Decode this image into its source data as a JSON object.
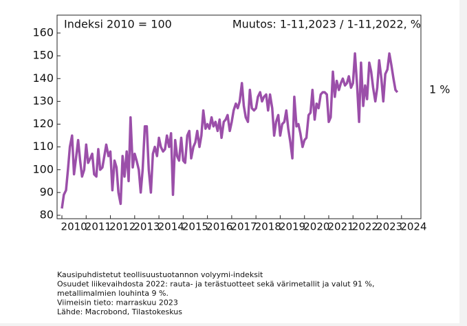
{
  "chart_data": {
    "type": "line",
    "header_left": "Indeksi 2010 = 100",
    "header_right": "Muutos: 1-11,2023 / 1-11,2022, %",
    "annotation": "1 %",
    "notes": [
      "Kausipuhdistetut teollisuustuotannon volyymi-indeksit",
      "Osuudet liikevaihdosta 2022: rauta- ja terästuotteet sekä värimetallit ja valut 91 %,",
      "metallimalmien louhinta 9 %.",
      "Viimeisin tieto: marraskuu 2023",
      "Lähde: Macrobond, Tilastokeskus"
    ],
    "xlim": [
      2010,
      2024.8
    ],
    "xticks": [
      2010,
      2011,
      2012,
      2013,
      2014,
      2015,
      2016,
      2017,
      2018,
      2019,
      2020,
      2021,
      2022,
      2023,
      2024
    ],
    "ylim": [
      80,
      160
    ],
    "yticks": [
      80,
      90,
      100,
      110,
      120,
      130,
      140,
      150,
      160
    ],
    "x": [
      2010.0,
      2010.08,
      2010.17,
      2010.25,
      2010.33,
      2010.42,
      2010.5,
      2010.58,
      2010.67,
      2010.75,
      2010.83,
      2010.92,
      2011.0,
      2011.08,
      2011.17,
      2011.25,
      2011.33,
      2011.42,
      2011.5,
      2011.58,
      2011.67,
      2011.75,
      2011.83,
      2011.92,
      2012.0,
      2012.08,
      2012.17,
      2012.25,
      2012.33,
      2012.42,
      2012.5,
      2012.58,
      2012.67,
      2012.75,
      2012.83,
      2012.92,
      2013.0,
      2013.08,
      2013.17,
      2013.25,
      2013.33,
      2013.42,
      2013.5,
      2013.58,
      2013.67,
      2013.75,
      2013.83,
      2013.92,
      2014.0,
      2014.08,
      2014.17,
      2014.25,
      2014.33,
      2014.42,
      2014.5,
      2014.58,
      2014.67,
      2014.75,
      2014.83,
      2014.92,
      2015.0,
      2015.08,
      2015.17,
      2015.25,
      2015.33,
      2015.42,
      2015.5,
      2015.58,
      2015.67,
      2015.75,
      2015.83,
      2015.92,
      2016.0,
      2016.08,
      2016.17,
      2016.25,
      2016.33,
      2016.42,
      2016.5,
      2016.58,
      2016.67,
      2016.75,
      2016.83,
      2016.92,
      2017.0,
      2017.08,
      2017.17,
      2017.25,
      2017.33,
      2017.42,
      2017.5,
      2017.58,
      2017.67,
      2017.75,
      2017.83,
      2017.92,
      2018.0,
      2018.08,
      2018.17,
      2018.25,
      2018.33,
      2018.42,
      2018.5,
      2018.58,
      2018.67,
      2018.75,
      2018.83,
      2018.92,
      2019.0,
      2019.08,
      2019.17,
      2019.25,
      2019.33,
      2019.42,
      2019.5,
      2019.58,
      2019.67,
      2019.75,
      2019.83,
      2019.92,
      2020.0,
      2020.08,
      2020.17,
      2020.25,
      2020.33,
      2020.42,
      2020.5,
      2020.58,
      2020.67,
      2020.75,
      2020.83,
      2020.92,
      2021.0,
      2021.08,
      2021.17,
      2021.25,
      2021.33,
      2021.42,
      2021.5,
      2021.58,
      2021.67,
      2021.75,
      2021.83,
      2021.92,
      2022.0,
      2022.08,
      2022.17,
      2022.25,
      2022.33,
      2022.42,
      2022.5,
      2022.58,
      2022.67,
      2022.75,
      2022.83,
      2022.92,
      2023.0,
      2023.08,
      2023.17,
      2023.25,
      2023.33,
      2023.42,
      2023.5,
      2023.58,
      2023.67,
      2023.75,
      2023.83
    ],
    "series": [
      {
        "color": "#9b4fa9",
        "values": [
          83,
          89,
          91,
          100,
          110,
          115,
          98,
          105,
          113,
          104,
          97,
          100,
          111,
          103,
          105,
          107,
          98,
          97,
          109,
          100,
          101,
          106,
          111,
          106,
          108,
          91,
          104,
          101,
          90,
          85,
          106,
          97,
          108,
          95,
          123,
          101,
          107,
          104,
          100,
          90,
          100,
          119,
          119,
          100,
          90,
          107,
          110,
          106,
          114,
          110,
          108,
          109,
          115,
          110,
          116,
          89,
          113,
          106,
          104,
          114,
          104,
          103,
          115,
          117,
          105,
          110,
          112,
          117,
          110,
          115,
          126,
          118,
          120,
          118,
          123,
          119,
          121,
          117,
          122,
          114,
          121,
          122,
          124,
          117,
          121,
          126,
          129,
          127,
          130,
          138,
          128,
          123,
          121,
          135,
          127,
          126,
          127,
          132,
          134,
          130,
          132,
          133,
          126,
          133,
          127,
          115,
          121,
          124,
          115,
          120,
          121,
          126,
          118,
          112,
          105,
          132,
          119,
          120,
          116,
          110,
          113,
          114,
          124,
          125,
          135,
          122,
          129,
          127,
          133,
          134,
          134,
          133,
          121,
          123,
          143,
          132,
          139,
          135,
          138,
          140,
          137,
          138,
          141,
          136,
          138,
          151,
          137,
          121,
          147,
          128,
          137,
          131,
          147,
          143,
          136,
          130,
          136,
          148,
          140,
          130,
          142,
          144,
          151,
          146,
          140,
          135,
          134
        ]
      }
    ]
  }
}
